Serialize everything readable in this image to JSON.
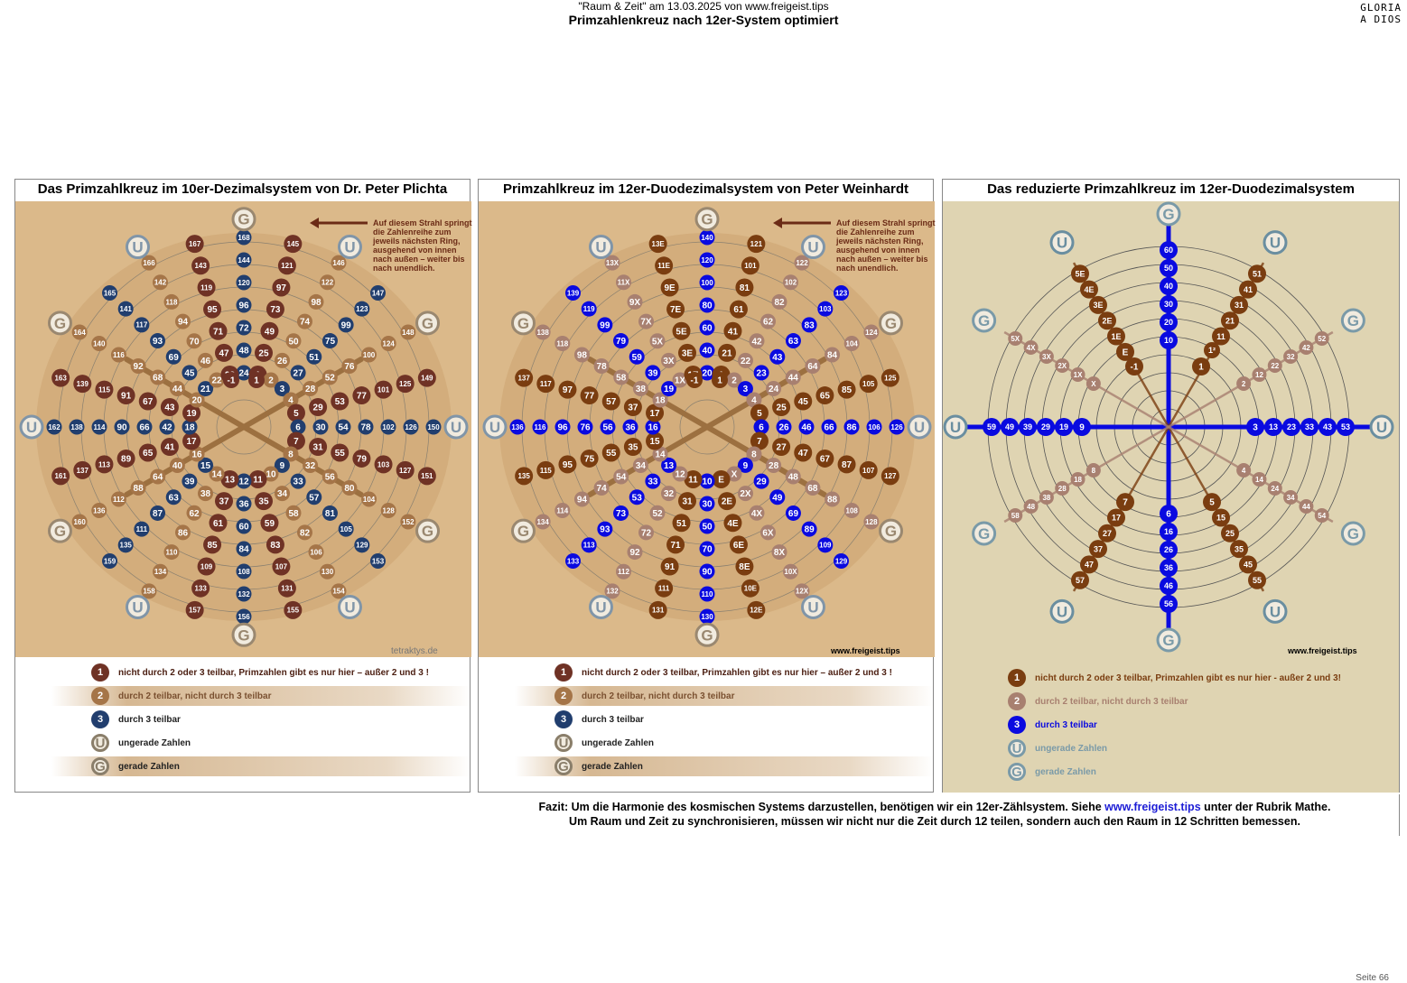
{
  "header": {
    "line1": "\"Raum & Zeit\" am 13.03.2025 von www.freigeist.tips",
    "line2": "Primzahlenkreuz nach 12er-System optimiert"
  },
  "brand": {
    "line1": "GLORIA",
    "line2": "A DIOS"
  },
  "footer": {
    "page": "Seite 66"
  },
  "fazit": {
    "prefix": "Fazit: Um die Harmonie des kosmischen Systems darzustellen, benötigen wir ein 12er-Zählsystem. Siehe ",
    "link": "www.freigeist.tips",
    "suffix": " unter der Rubrik Mathe.",
    "line2": "Um Raum und Zeit zu synchronisieren, müssen wir nicht nur die Zeit durch 12 teilen, sondern auch den Raum in 12 Schritten bemessen."
  },
  "colors": {
    "prime": "#6f3225",
    "prime12": "#7a3d10",
    "even": "#a57548",
    "even3": "#a88070",
    "three": "#213e6e",
    "three12": "#0a0ae0",
    "u": "#7a9aa8",
    "bg_tan": "#dbb98a",
    "bg_pale": "#dfd4b2"
  },
  "panels": [
    {
      "title": "Das Primzahlkreuz im 10er-Dezimalsystem von Dr. Peter Plichta",
      "note": "Auf diesem Strahl springt die Zahlenreihe zum jeweils nächsten Ring, ausgehend von innen nach außen – weiter bis nach unendlich.",
      "site": "tetraktys.de",
      "center_labels": [
        "-1",
        "1",
        "1²"
      ],
      "spokes": [
        [
          "168",
          "144",
          "120",
          "96",
          "72",
          "48",
          "24"
        ],
        [
          "145",
          "121",
          "97",
          "73",
          "49",
          "25",
          "1"
        ],
        [
          "146",
          "122",
          "98",
          "74",
          "50",
          "26",
          "2"
        ],
        [
          "147",
          "123",
          "99",
          "75",
          "51",
          "27",
          "3"
        ],
        [
          "148",
          "124",
          "100",
          "76",
          "52",
          "28",
          "4"
        ],
        [
          "149",
          "125",
          "101",
          "77",
          "53",
          "29",
          "5"
        ],
        [
          "150",
          "126",
          "102",
          "78",
          "54",
          "30",
          "6"
        ],
        [
          "151",
          "127",
          "103",
          "79",
          "55",
          "31",
          "7"
        ],
        [
          "152",
          "128",
          "104",
          "80",
          "56",
          "32",
          "8"
        ],
        [
          "153",
          "129",
          "105",
          "81",
          "57",
          "33",
          "9"
        ],
        [
          "154",
          "130",
          "106",
          "82",
          "58",
          "34",
          "10"
        ],
        [
          "155",
          "131",
          "107",
          "83",
          "59",
          "35",
          "11"
        ],
        [
          "156",
          "132",
          "108",
          "84",
          "60",
          "36",
          "12"
        ],
        [
          "157",
          "133",
          "109",
          "85",
          "61",
          "37",
          "13"
        ],
        [
          "158",
          "134",
          "110",
          "86",
          "62",
          "38",
          "14"
        ],
        [
          "159",
          "135",
          "111",
          "87",
          "63",
          "39",
          "15"
        ],
        [
          "160",
          "136",
          "112",
          "88",
          "64",
          "40",
          "16"
        ],
        [
          "161",
          "137",
          "113",
          "89",
          "65",
          "41",
          "17"
        ],
        [
          "162",
          "138",
          "114",
          "90",
          "66",
          "42",
          "18"
        ],
        [
          "163",
          "139",
          "115",
          "91",
          "67",
          "43",
          "19"
        ],
        [
          "164",
          "140",
          "116",
          "92",
          "68",
          "44",
          "20"
        ],
        [
          "165",
          "141",
          "117",
          "93",
          "69",
          "45",
          "21"
        ],
        [
          "166",
          "142",
          "118",
          "94",
          "70",
          "46",
          "22"
        ],
        [
          "167",
          "143",
          "119",
          "95",
          "71",
          "47",
          "23"
        ]
      ],
      "legend": [
        {
          "sym": "1",
          "text": "nicht durch 2 oder 3 teilbar, Primzahlen gibt es nur hier – außer 2 und 3 !"
        },
        {
          "sym": "2",
          "text": "durch 2 teilbar, nicht durch 3 teilbar"
        },
        {
          "sym": "3",
          "text": "durch 3 teilbar"
        },
        {
          "sym": "U",
          "text": "ungerade Zahlen"
        },
        {
          "sym": "G",
          "text": "gerade Zahlen"
        }
      ]
    },
    {
      "title": "Primzahlkreuz im 12er-Duodezimalsystem von Peter Weinhardt",
      "note": "Auf diesem Strahl springt die Zahlenreihe zum jeweils nächsten Ring, ausgehend von innen nach außen – weiter bis nach unendlich.",
      "site": "www.freigeist.tips",
      "center_labels": [
        "-1",
        "1",
        "1²"
      ],
      "spokes": [
        [
          "140",
          "120",
          "100",
          "80",
          "60",
          "40",
          "20"
        ],
        [
          "121",
          "101",
          "81",
          "61",
          "41",
          "21",
          "1"
        ],
        [
          "122",
          "102",
          "82",
          "62",
          "42",
          "22",
          "2"
        ],
        [
          "123",
          "103",
          "83",
          "63",
          "43",
          "23",
          "3"
        ],
        [
          "124",
          "104",
          "84",
          "64",
          "44",
          "24",
          "4"
        ],
        [
          "125",
          "105",
          "85",
          "65",
          "45",
          "25",
          "5"
        ],
        [
          "126",
          "106",
          "86",
          "66",
          "46",
          "26",
          "6"
        ],
        [
          "127",
          "107",
          "87",
          "67",
          "47",
          "27",
          "7"
        ],
        [
          "128",
          "108",
          "88",
          "68",
          "48",
          "28",
          "8"
        ],
        [
          "129",
          "109",
          "89",
          "69",
          "49",
          "29",
          "9"
        ],
        [
          "12X",
          "10X",
          "8X",
          "6X",
          "4X",
          "2X",
          "X"
        ],
        [
          "12E",
          "10E",
          "8E",
          "6E",
          "4E",
          "2E",
          "E"
        ],
        [
          "130",
          "110",
          "90",
          "70",
          "50",
          "30",
          "10"
        ],
        [
          "131",
          "111",
          "91",
          "71",
          "51",
          "31",
          "11"
        ],
        [
          "132",
          "112",
          "92",
          "72",
          "52",
          "32",
          "12"
        ],
        [
          "133",
          "113",
          "93",
          "73",
          "53",
          "33",
          "13"
        ],
        [
          "134",
          "114",
          "94",
          "74",
          "54",
          "34",
          "14"
        ],
        [
          "135",
          "115",
          "95",
          "75",
          "55",
          "35",
          "15"
        ],
        [
          "136",
          "116",
          "96",
          "76",
          "56",
          "36",
          "16"
        ],
        [
          "137",
          "117",
          "97",
          "77",
          "57",
          "37",
          "17"
        ],
        [
          "138",
          "118",
          "98",
          "78",
          "58",
          "38",
          "18"
        ],
        [
          "139",
          "119",
          "99",
          "79",
          "59",
          "39",
          "19"
        ],
        [
          "13X",
          "11X",
          "9X",
          "7X",
          "5X",
          "3X",
          "1X"
        ],
        [
          "13E",
          "11E",
          "9E",
          "7E",
          "5E",
          "3E",
          "1E"
        ]
      ],
      "legend": [
        {
          "sym": "1",
          "text": "nicht durch 2 oder 3 teilbar, Primzahlen gibt es nur hier – außer 2 und 3 !"
        },
        {
          "sym": "2",
          "text": "durch 2 teilbar, nicht durch 3 teilbar"
        },
        {
          "sym": "3",
          "text": "durch 3 teilbar"
        },
        {
          "sym": "U",
          "text": "ungerade Zahlen"
        },
        {
          "sym": "G",
          "text": "gerade Zahlen"
        }
      ]
    },
    {
      "title": "Das reduzierte Primzahlkreuz im 12er-Duodezimalsystem",
      "site": "www.freigeist.tips",
      "center_labels": [
        "-1",
        "1",
        "1²"
      ],
      "arms": {
        "up": [
          "60",
          "50",
          "40",
          "30",
          "20",
          "10"
        ],
        "down": [
          "6",
          "16",
          "26",
          "36",
          "46",
          "56"
        ],
        "left": [
          "59",
          "49",
          "39",
          "29",
          "19",
          "9"
        ],
        "right": [
          "3",
          "13",
          "23",
          "33",
          "43",
          "53"
        ],
        "up_right": [
          "51",
          "41",
          "31",
          "21",
          "11"
        ],
        "up_left": [
          "5E",
          "4E",
          "3E",
          "2E",
          "1E",
          "E"
        ],
        "down_right": [
          "5",
          "15",
          "25",
          "35",
          "45",
          "55"
        ],
        "down_left": [
          "7",
          "17",
          "27",
          "37",
          "47",
          "57"
        ],
        "ur_light": [
          "52",
          "42",
          "32",
          "22",
          "12",
          "2"
        ],
        "ul_light": [
          "5X",
          "4X",
          "3X",
          "2X",
          "1X",
          "X"
        ],
        "dr_light": [
          "4",
          "14",
          "24",
          "34",
          "44",
          "54"
        ],
        "dl_light": [
          "8",
          "18",
          "28",
          "38",
          "48",
          "58"
        ]
      },
      "legend": [
        {
          "sym": "1",
          "text": "nicht durch 2 oder 3 teilbar, Primzahlen gibt es nur hier - außer 2 und 3!"
        },
        {
          "sym": "2",
          "text": "durch 2 teilbar, nicht durch 3 teilbar"
        },
        {
          "sym": "3",
          "text": "durch 3 teilbar"
        },
        {
          "sym": "U",
          "text": "ungerade Zahlen"
        },
        {
          "sym": "G",
          "text": "gerade Zahlen"
        }
      ]
    }
  ]
}
